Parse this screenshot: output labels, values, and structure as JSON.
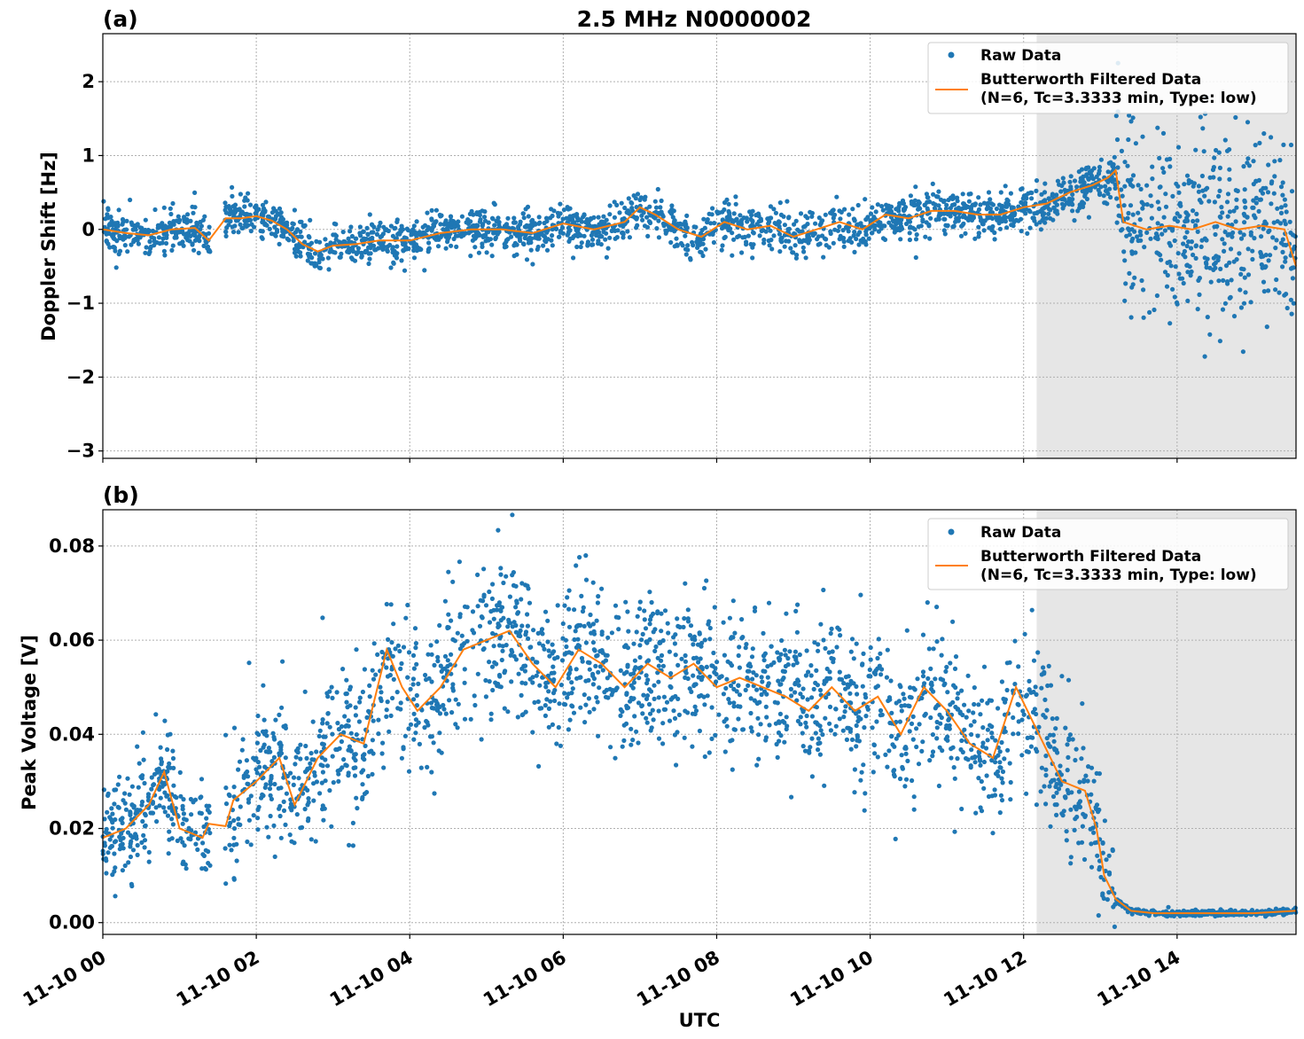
{
  "title": "2.5 MHz N0000002",
  "colors": {
    "raw": "#1f77b4",
    "filtered": "#ff7f0e",
    "shade": "#e6e6e6",
    "grid": "#b0b0b0"
  },
  "shaded_region": {
    "start_hours": 12.17,
    "end_hours": 15.55
  },
  "chart_data": [
    {
      "type": "scatter",
      "panel_label": "(a)",
      "ylabel": "Doppler Shift [Hz]",
      "xlabel": "",
      "xlim_hours": [
        0,
        15.55
      ],
      "ylim": [
        -3.1,
        2.65
      ],
      "yticks": [
        2,
        1,
        0,
        -1,
        -2,
        -3
      ],
      "ytick_labels": [
        "2",
        "1",
        "0",
        "−1",
        "−2",
        "−3"
      ],
      "grid": true,
      "legend": {
        "position": "top-right",
        "raw_label": "Raw Data",
        "filtered_label_line1": "Butterworth Filtered Data",
        "filtered_label_line2": "(N=6, Tc=3.3333 min, Type: low)"
      },
      "series": [
        {
          "name": "Butterworth Filtered Data",
          "x_hours": [
            0.0,
            0.3,
            0.6,
            0.9,
            1.2,
            1.38,
            1.6,
            1.8,
            2.0,
            2.2,
            2.4,
            2.6,
            2.8,
            3.0,
            3.3,
            3.6,
            4.0,
            4.4,
            4.8,
            5.2,
            5.6,
            6.0,
            6.4,
            6.8,
            7.0,
            7.2,
            7.5,
            7.8,
            8.1,
            8.4,
            8.7,
            9.0,
            9.3,
            9.6,
            9.9,
            10.2,
            10.5,
            10.8,
            11.1,
            11.4,
            11.7,
            12.0,
            12.3,
            12.6,
            12.9,
            13.1,
            13.2,
            13.3,
            13.6,
            13.9,
            14.2,
            14.5,
            14.8,
            15.1,
            15.4,
            15.55
          ],
          "values": [
            0.0,
            -0.05,
            -0.08,
            0.0,
            0.02,
            -0.15,
            0.15,
            0.15,
            0.18,
            0.12,
            0.0,
            -0.2,
            -0.3,
            -0.22,
            -0.2,
            -0.15,
            -0.15,
            -0.05,
            0.0,
            0.0,
            -0.05,
            0.08,
            0.0,
            0.1,
            0.3,
            0.2,
            0.0,
            -0.1,
            0.1,
            0.0,
            0.05,
            -0.1,
            0.0,
            0.1,
            0.0,
            0.2,
            0.15,
            0.25,
            0.25,
            0.2,
            0.2,
            0.3,
            0.35,
            0.5,
            0.6,
            0.7,
            0.8,
            0.1,
            0.0,
            0.05,
            0.0,
            0.1,
            0.0,
            0.05,
            0.0,
            -0.5
          ]
        }
      ]
    },
    {
      "type": "scatter",
      "panel_label": "(b)",
      "ylabel": "Peak Voltage [V]",
      "xlabel": "UTC",
      "xlim_hours": [
        0,
        15.55
      ],
      "ylim": [
        -0.0025,
        0.0877
      ],
      "yticks": [
        0.08,
        0.06,
        0.04,
        0.02,
        0.0
      ],
      "ytick_labels": [
        "0.08",
        "0.06",
        "0.04",
        "0.02",
        "0.00"
      ],
      "xticks_hours": [
        0,
        2,
        4,
        6,
        8,
        10,
        12,
        14
      ],
      "xtick_labels": [
        "11-10 00",
        "11-10 02",
        "11-10 04",
        "11-10 06",
        "11-10 08",
        "11-10 10",
        "11-10 12",
        "11-10 14"
      ],
      "grid": true,
      "legend": {
        "position": "top-right",
        "raw_label": "Raw Data",
        "filtered_label_line1": "Butterworth Filtered Data",
        "filtered_label_line2": "(N=6, Tc=3.3333 min, Type: low)"
      },
      "series": [
        {
          "name": "Butterworth Filtered Data",
          "x_hours": [
            0.0,
            0.3,
            0.6,
            0.8,
            1.0,
            1.3,
            1.38,
            1.6,
            1.7,
            2.0,
            2.3,
            2.5,
            2.8,
            3.1,
            3.4,
            3.7,
            3.9,
            4.1,
            4.4,
            4.7,
            5.0,
            5.3,
            5.6,
            5.9,
            6.2,
            6.5,
            6.8,
            7.1,
            7.4,
            7.7,
            8.0,
            8.3,
            8.6,
            8.9,
            9.2,
            9.5,
            9.8,
            10.1,
            10.4,
            10.7,
            11.0,
            11.3,
            11.6,
            11.9,
            12.2,
            12.5,
            12.8,
            12.95,
            13.05,
            13.2,
            13.4,
            13.7,
            14.0,
            14.5,
            15.0,
            15.55
          ],
          "values": [
            0.018,
            0.02,
            0.025,
            0.032,
            0.02,
            0.018,
            0.021,
            0.0205,
            0.026,
            0.03,
            0.035,
            0.025,
            0.035,
            0.04,
            0.038,
            0.058,
            0.05,
            0.045,
            0.05,
            0.058,
            0.06,
            0.062,
            0.055,
            0.05,
            0.058,
            0.055,
            0.05,
            0.055,
            0.052,
            0.055,
            0.05,
            0.052,
            0.05,
            0.048,
            0.045,
            0.05,
            0.045,
            0.048,
            0.04,
            0.05,
            0.045,
            0.038,
            0.035,
            0.05,
            0.04,
            0.03,
            0.028,
            0.02,
            0.01,
            0.005,
            0.0025,
            0.002,
            0.002,
            0.002,
            0.002,
            0.0025
          ]
        }
      ]
    }
  ]
}
